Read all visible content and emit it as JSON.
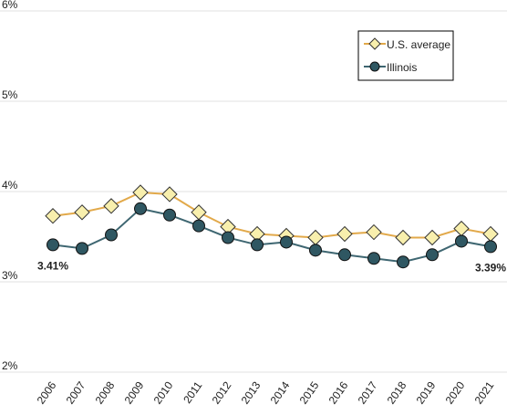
{
  "chart_data": {
    "type": "line",
    "categories": [
      "2006",
      "2007",
      "2008",
      "2009",
      "2010",
      "2011",
      "2012",
      "2013",
      "2014",
      "2015",
      "2016",
      "2017",
      "2018",
      "2019",
      "2020",
      "2021"
    ],
    "series": [
      {
        "name": "U.S. average",
        "color": "#e2a94a",
        "marker_color": "#f8efad",
        "marker": "diamond",
        "values": [
          3.73,
          3.77,
          3.84,
          3.99,
          3.97,
          3.77,
          3.61,
          3.53,
          3.51,
          3.49,
          3.53,
          3.55,
          3.49,
          3.49,
          3.59,
          3.53
        ]
      },
      {
        "name": "Illinois",
        "color": "#3e6671",
        "marker_color": "#2f5762",
        "marker": "circle",
        "values": [
          3.41,
          3.37,
          3.52,
          3.81,
          3.74,
          3.62,
          3.49,
          3.41,
          3.44,
          3.35,
          3.3,
          3.26,
          3.22,
          3.3,
          3.45,
          3.39
        ],
        "value_labels": [
          "3.41%",
          null,
          null,
          null,
          null,
          null,
          null,
          null,
          null,
          null,
          null,
          null,
          null,
          null,
          null,
          "3.39%"
        ]
      }
    ],
    "ylim": [
      2,
      6
    ],
    "yticks": [
      {
        "value": 2,
        "label": "2%"
      },
      {
        "value": 3,
        "label": "3%"
      },
      {
        "value": 4,
        "label": "4%"
      },
      {
        "value": 5,
        "label": "5%"
      },
      {
        "value": 6,
        "label": "6%"
      }
    ],
    "grid": true,
    "legend": "top-right"
  }
}
